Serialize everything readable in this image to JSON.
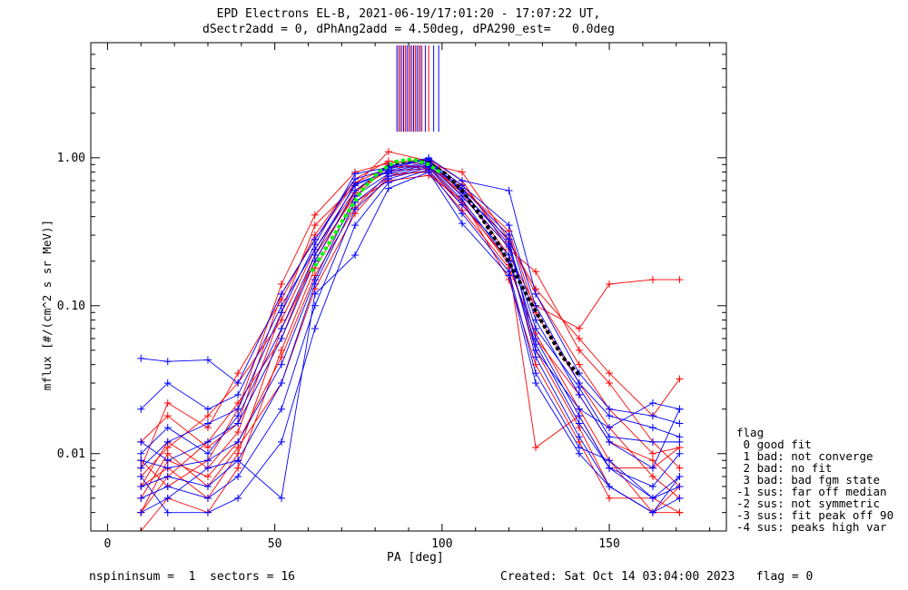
{
  "title_line1": "EPD Electrons EL-B, 2021-06-19/17:01:20 - 17:07:22 UT,",
  "title_line2": "dSectr2add = 0, dPhAng2add = 4.50deg, dPA290_est=   0.0deg",
  "footer_left": "nspininsum =  1  sectors = 16",
  "footer_right": "Created: Sat Oct 14 03:04:00 2023   flag = 0",
  "legend": {
    "title": "flag",
    "items": [
      " 0 good fit",
      " 1 bad: not converge",
      " 2 bad: no fit",
      " 3 bad: bad fgm state",
      "-1 sus: far off median",
      "-2 sus: not symmetric",
      "-3 sus: fit peak off 90",
      "-4 sus: peaks high var"
    ]
  },
  "colors": {
    "series_red": "#ff0000",
    "series_blue": "#0000ff",
    "fit_green": "#00ff00",
    "fit_black": "#000000"
  },
  "chart_data": {
    "type": "line",
    "xlabel": "PA [deg]",
    "ylabel": "mflux [#/(cm^2 s sr MeV)]",
    "xlim": [
      -5,
      185
    ],
    "ylim": [
      0.003,
      6.0
    ],
    "y_scale": "log",
    "x_ticks": [
      0,
      50,
      100,
      150
    ],
    "x_tick_labels": [
      "0",
      "50",
      "100",
      "150"
    ],
    "y_ticks": [
      0.01,
      0.1,
      1.0
    ],
    "y_tick_labels": [
      "0.01",
      "0.10",
      "1.00"
    ],
    "pa_bins": [
      10,
      18,
      30,
      39,
      52,
      62,
      74,
      84,
      96,
      106,
      120,
      128,
      141,
      150,
      163,
      171
    ],
    "red_series": [
      {
        "values": [
          0.006,
          0.012,
          0.008,
          0.014,
          0.09,
          0.35,
          0.65,
          1.1,
          0.95,
          0.55,
          0.25,
          0.06,
          0.025,
          0.012,
          0.009,
          0.006
        ]
      },
      {
        "values": [
          0.004,
          0.007,
          0.012,
          0.022,
          0.06,
          0.22,
          0.55,
          0.88,
          0.85,
          0.62,
          0.32,
          0.09,
          0.03,
          0.015,
          0.007,
          0.005
        ]
      },
      {
        "values": [
          0.008,
          0.022,
          0.015,
          0.035,
          0.11,
          0.3,
          0.72,
          0.95,
          0.9,
          0.8,
          0.28,
          0.12,
          0.04,
          0.02,
          0.01,
          0.011
        ]
      },
      {
        "values": [
          0.005,
          0.01,
          0.006,
          0.011,
          0.03,
          0.13,
          0.42,
          0.75,
          0.82,
          0.48,
          0.2,
          0.05,
          0.015,
          0.006,
          0.004,
          0.004
        ]
      },
      {
        "values": [
          0.009,
          0.006,
          0.009,
          0.02,
          0.14,
          0.41,
          0.8,
          0.92,
          0.98,
          0.7,
          0.24,
          0.17,
          0.05,
          0.03,
          0.012,
          0.008
        ]
      },
      {
        "values": [
          0.003,
          0.005,
          0.004,
          0.008,
          0.05,
          0.18,
          0.5,
          0.7,
          0.76,
          0.52,
          0.15,
          0.04,
          0.012,
          0.005,
          0.005,
          0.004
        ]
      },
      {
        "values": [
          0.007,
          0.011,
          0.018,
          0.03,
          0.08,
          0.24,
          0.6,
          0.82,
          0.84,
          0.66,
          0.27,
          0.13,
          0.06,
          0.035,
          0.018,
          0.032
        ]
      },
      {
        "values": [
          0.012,
          0.018,
          0.011,
          0.016,
          0.12,
          0.28,
          0.68,
          0.86,
          0.88,
          0.58,
          0.22,
          0.1,
          0.07,
          0.14,
          0.15,
          0.15
        ]
      },
      {
        "values": [
          0.004,
          0.009,
          0.007,
          0.012,
          0.045,
          0.16,
          0.46,
          0.78,
          0.8,
          0.44,
          0.18,
          0.065,
          0.02,
          0.009,
          0.004,
          0.006
        ]
      },
      {
        "values": [
          0.006,
          0.008,
          0.005,
          0.01,
          0.07,
          0.2,
          0.58,
          0.9,
          0.87,
          0.5,
          0.19,
          0.011,
          0.018,
          0.008,
          0.008,
          0.011
        ]
      }
    ],
    "blue_series": [
      {
        "values": [
          0.044,
          0.042,
          0.043,
          0.03,
          0.12,
          0.28,
          0.72,
          0.84,
          0.98,
          0.58,
          0.28,
          0.05,
          0.02,
          0.015,
          0.022,
          0.02
        ]
      },
      {
        "values": [
          0.02,
          0.03,
          0.02,
          0.025,
          0.1,
          0.24,
          0.65,
          0.82,
          0.94,
          0.62,
          0.3,
          0.08,
          0.025,
          0.012,
          0.008,
          0.02
        ]
      },
      {
        "values": [
          0.009,
          0.008,
          0.009,
          0.012,
          0.04,
          0.15,
          0.55,
          0.78,
          0.9,
          0.55,
          0.25,
          0.06,
          0.018,
          0.008,
          0.006,
          0.01
        ]
      },
      {
        "values": [
          0.005,
          0.006,
          0.005,
          0.007,
          0.02,
          0.1,
          0.45,
          0.72,
          0.86,
          0.48,
          0.22,
          0.045,
          0.013,
          0.006,
          0.004,
          0.005
        ]
      },
      {
        "values": [
          0.007,
          0.004,
          0.004,
          0.005,
          0.012,
          0.07,
          0.35,
          0.68,
          0.83,
          0.42,
          0.17,
          0.035,
          0.011,
          0.009,
          0.005,
          0.007
        ]
      },
      {
        "values": [
          0.012,
          0.009,
          0.012,
          0.016,
          0.06,
          0.2,
          0.6,
          0.88,
          0.96,
          0.65,
          0.35,
          0.1,
          0.03,
          0.018,
          0.015,
          0.013
        ]
      },
      {
        "values": [
          0.004,
          0.005,
          0.008,
          0.009,
          0.005,
          0.12,
          0.22,
          0.62,
          0.8,
          0.36,
          0.16,
          0.03,
          0.01,
          0.006,
          0.004,
          0.007
        ]
      },
      {
        "values": [
          0.01,
          0.015,
          0.01,
          0.018,
          0.07,
          0.22,
          0.67,
          0.8,
          0.92,
          0.6,
          0.26,
          0.07,
          0.028,
          0.013,
          0.012,
          0.012
        ]
      },
      {
        "values": [
          0.006,
          0.007,
          0.006,
          0.009,
          0.03,
          0.14,
          0.5,
          0.75,
          0.88,
          0.52,
          0.2,
          0.055,
          0.016,
          0.008,
          0.005,
          0.006
        ]
      },
      {
        "values": [
          0.008,
          0.012,
          0.016,
          0.02,
          0.09,
          0.26,
          0.78,
          0.86,
          1.0,
          0.7,
          0.6,
          0.12,
          0.035,
          0.02,
          0.018,
          0.016
        ]
      }
    ],
    "fit_green": {
      "x": [
        61,
        66,
        71,
        76,
        81,
        86,
        91,
        96,
        100
      ],
      "values": [
        0.17,
        0.26,
        0.4,
        0.6,
        0.8,
        0.94,
        0.98,
        0.9,
        0.78
      ]
    },
    "fit_black": {
      "x": [
        86,
        91,
        96,
        101,
        106,
        111,
        116,
        121,
        126,
        131,
        136,
        141
      ],
      "values": [
        0.92,
        0.97,
        0.92,
        0.78,
        0.6,
        0.42,
        0.28,
        0.18,
        0.11,
        0.07,
        0.045,
        0.034
      ]
    },
    "spikes_blue_x": [
      86.5,
      87.5,
      88.5,
      89.5,
      90.5,
      91.5,
      92.5,
      93.5,
      95,
      97.5,
      99
    ],
    "spikes_red_x": [
      87,
      88,
      89,
      90,
      91,
      92,
      93,
      94,
      96
    ]
  }
}
